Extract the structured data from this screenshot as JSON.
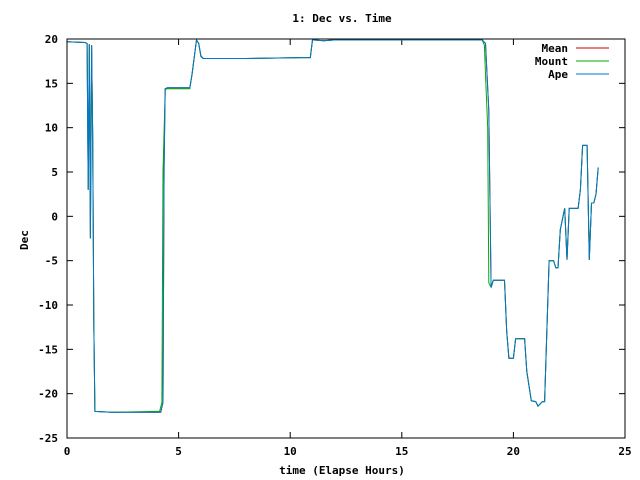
{
  "chart_data": {
    "type": "line",
    "title": "1: Dec vs. Time",
    "xlabel": "time (Elapse Hours)",
    "ylabel": "Dec",
    "xlim": [
      0,
      25
    ],
    "ylim": [
      -25,
      20
    ],
    "xticks": [
      0,
      5,
      10,
      15,
      20,
      25
    ],
    "yticks": [
      -25,
      -20,
      -15,
      -10,
      -5,
      0,
      5,
      10,
      15,
      20
    ],
    "grid": false,
    "legend_position": "top-right",
    "series": [
      {
        "name": "Mean",
        "color": "#cc0000",
        "x": [
          0,
          0.8,
          0.9,
          0.95,
          1.0,
          1.05,
          1.1,
          1.15,
          1.2,
          1.25,
          2,
          4,
          4.2,
          4.3,
          4.35,
          4.4,
          4.5,
          5,
          5.5,
          5.6,
          5.8,
          5.9,
          6.0,
          6.1,
          8,
          10.5,
          10.9,
          11.0,
          11.5,
          12,
          13,
          15,
          18,
          18.6,
          18.75,
          18.8,
          18.9,
          19.0,
          19.1,
          19.5,
          19.6,
          19.7,
          19.8,
          20.0,
          20.1,
          20.2,
          20.5,
          20.6,
          20.8,
          21.0,
          21.1,
          21.3,
          21.4,
          21.6,
          21.8,
          21.9,
          22.0,
          22.1,
          22.3,
          22.4,
          22.5,
          22.8,
          22.9,
          23.0,
          23.1,
          23.3,
          23.4,
          23.5,
          23.6,
          23.7,
          23.8
        ],
        "values": [
          19.7,
          19.6,
          19.5,
          3,
          19.4,
          -2.5,
          19.3,
          9,
          -12,
          -22,
          -22.1,
          -22.1,
          -22.1,
          -21,
          5.5,
          14.4,
          14.5,
          14.5,
          14.5,
          16,
          19.9,
          19.5,
          18.1,
          17.8,
          17.8,
          17.9,
          17.9,
          19.9,
          19.8,
          19.9,
          19.9,
          19.9,
          19.9,
          19.9,
          19.5,
          17,
          12,
          -8,
          -7.2,
          -7.2,
          -7.2,
          -13,
          -16,
          -16,
          -13.8,
          -13.8,
          -13.8,
          -17.5,
          -20.8,
          -20.9,
          -21.4,
          -20.9,
          -20.9,
          -5,
          -5,
          -5.8,
          -5.8,
          -1.5,
          0.9,
          -4.9,
          0.9,
          0.9,
          0.9,
          3,
          8,
          8,
          -4.9,
          1.5,
          1.5,
          2.5,
          5.5
        ]
      },
      {
        "name": "Mount",
        "color": "#00aa00",
        "x": [
          0,
          0.8,
          0.9,
          0.95,
          1.0,
          1.05,
          1.1,
          1.15,
          1.2,
          1.25,
          2,
          4,
          4.15,
          4.25,
          4.3,
          4.4,
          4.5,
          5,
          5.5,
          5.6,
          5.8,
          5.9,
          6.0,
          6.1,
          8,
          10.5,
          10.9,
          11.0,
          11.5,
          12,
          13,
          15,
          18,
          18.6,
          18.7,
          18.75,
          18.85,
          18.9,
          19.0,
          19.1,
          19.5,
          19.6,
          19.7,
          19.8,
          20.0,
          20.1,
          20.2,
          20.5,
          20.6,
          20.8,
          21.0,
          21.1,
          21.3,
          21.4,
          21.6,
          21.8,
          21.9,
          22.0,
          22.1,
          22.3,
          22.4,
          22.5,
          22.8,
          22.9,
          23.0,
          23.1,
          23.3,
          23.4,
          23.5,
          23.6,
          23.7,
          23.8
        ],
        "values": [
          19.7,
          19.6,
          19.5,
          3,
          19.4,
          -2.5,
          19.3,
          9,
          -12,
          -22,
          -22.1,
          -22,
          -22,
          -21,
          5,
          14.3,
          14.4,
          14.4,
          14.4,
          16,
          19.9,
          19.5,
          18.0,
          17.8,
          17.8,
          17.9,
          17.9,
          19.9,
          19.8,
          19.9,
          19.9,
          19.9,
          19.9,
          19.9,
          19.3,
          16,
          10,
          -7.5,
          -8,
          -7.2,
          -7.2,
          -7.2,
          -13,
          -16,
          -16,
          -13.8,
          -13.8,
          -13.8,
          -17.5,
          -20.8,
          -20.9,
          -21.4,
          -20.9,
          -20.9,
          -5,
          -5,
          -5.8,
          -5.8,
          -1.5,
          0.9,
          -4.9,
          0.9,
          0.9,
          0.9,
          3,
          8,
          8,
          -4.9,
          1.5,
          1.5,
          2.5,
          5.5
        ]
      },
      {
        "name": "Ape",
        "color": "#0077cc",
        "x": [
          0,
          0.8,
          0.9,
          0.95,
          1.0,
          1.05,
          1.1,
          1.15,
          1.2,
          1.25,
          2,
          4,
          4.2,
          4.3,
          4.35,
          4.4,
          4.5,
          5,
          5.5,
          5.6,
          5.8,
          5.9,
          6.0,
          6.1,
          8,
          10.5,
          10.9,
          11.0,
          11.5,
          12,
          13,
          15,
          18,
          18.6,
          18.75,
          18.8,
          18.9,
          19.0,
          19.1,
          19.5,
          19.6,
          19.7,
          19.8,
          20.0,
          20.1,
          20.2,
          20.5,
          20.6,
          20.8,
          21.0,
          21.1,
          21.3,
          21.4,
          21.6,
          21.8,
          21.9,
          22.0,
          22.1,
          22.3,
          22.4,
          22.5,
          22.8,
          22.9,
          23.0,
          23.1,
          23.3,
          23.4,
          23.5,
          23.6,
          23.7,
          23.8
        ],
        "values": [
          19.7,
          19.6,
          19.5,
          3,
          19.4,
          -2.5,
          19.3,
          9,
          -12,
          -22,
          -22.1,
          -22.1,
          -22.1,
          -21,
          5.5,
          14.4,
          14.5,
          14.5,
          14.5,
          16,
          19.9,
          19.5,
          18.1,
          17.8,
          17.8,
          17.9,
          17.9,
          19.9,
          19.8,
          19.9,
          19.9,
          19.9,
          19.9,
          19.9,
          19.5,
          17,
          12,
          -8,
          -7.2,
          -7.2,
          -7.2,
          -13,
          -16,
          -16,
          -13.8,
          -13.8,
          -13.8,
          -17.5,
          -20.8,
          -20.9,
          -21.4,
          -20.9,
          -20.9,
          -5,
          -5,
          -5.8,
          -5.8,
          -1.5,
          0.9,
          -4.9,
          0.9,
          0.9,
          0.9,
          3,
          8,
          8,
          -4.9,
          1.5,
          1.5,
          2.5,
          5.5
        ]
      }
    ]
  }
}
